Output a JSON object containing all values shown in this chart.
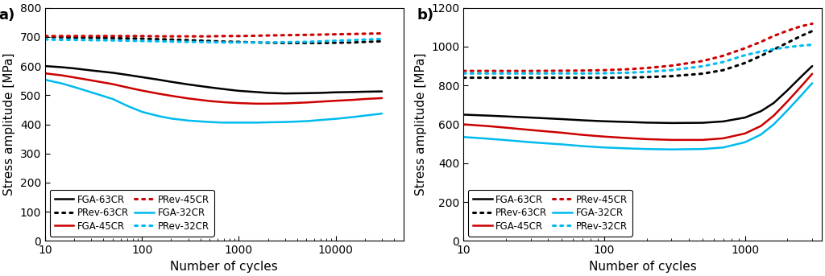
{
  "panel_a": {
    "xlabel": "Number of cycles",
    "ylabel": "Stress amplitude [MPa]",
    "ylim": [
      0,
      800
    ],
    "yticks": [
      0,
      100,
      200,
      300,
      400,
      500,
      600,
      700,
      800
    ],
    "xlim_log": [
      10,
      50000
    ],
    "label": "a)",
    "series": {
      "FGA-63CR": {
        "color": "#000000",
        "linestyle": "solid",
        "linewidth": 1.8,
        "x": [
          10,
          15,
          20,
          30,
          50,
          70,
          100,
          150,
          200,
          300,
          500,
          700,
          1000,
          1500,
          2000,
          3000,
          5000,
          7000,
          10000,
          15000,
          20000,
          30000
        ],
        "y": [
          600,
          596,
          592,
          585,
          577,
          570,
          562,
          553,
          546,
          537,
          527,
          521,
          515,
          511,
          508,
          506,
          507,
          508,
          510,
          511,
          512,
          513
        ]
      },
      "FGA-45CR": {
        "color": "#cc0000",
        "linestyle": "solid",
        "linewidth": 1.8,
        "x": [
          10,
          15,
          20,
          30,
          50,
          70,
          100,
          150,
          200,
          300,
          500,
          700,
          1000,
          1500,
          2000,
          3000,
          5000,
          7000,
          10000,
          15000,
          20000,
          30000
        ],
        "y": [
          575,
          568,
          561,
          551,
          538,
          527,
          516,
          505,
          498,
          489,
          480,
          476,
          473,
          471,
          471,
          472,
          475,
          478,
          481,
          484,
          487,
          490
        ]
      },
      "FGA-32CR": {
        "color": "#00bbee",
        "linestyle": "solid",
        "linewidth": 1.8,
        "x": [
          10,
          15,
          20,
          30,
          50,
          70,
          100,
          150,
          200,
          300,
          500,
          700,
          1000,
          1500,
          2000,
          3000,
          5000,
          7000,
          10000,
          15000,
          20000,
          30000
        ],
        "y": [
          553,
          540,
          528,
          510,
          487,
          464,
          443,
          428,
          420,
          413,
          408,
          406,
          406,
          406,
          407,
          408,
          411,
          415,
          419,
          425,
          430,
          437
        ]
      },
      "PRev-63CR": {
        "color": "#000000",
        "linestyle": "dotted",
        "linewidth": 2.2,
        "x": [
          10,
          15,
          20,
          30,
          50,
          70,
          100,
          150,
          200,
          300,
          500,
          700,
          1000,
          1500,
          2000,
          3000,
          5000,
          7000,
          10000,
          15000,
          20000,
          30000
        ],
        "y": [
          700,
          699,
          698,
          697,
          696,
          695,
          694,
          692,
          691,
          689,
          686,
          684,
          683,
          681,
          680,
          679,
          679,
          679,
          680,
          681,
          683,
          685
        ]
      },
      "PRev-45CR": {
        "color": "#cc0000",
        "linestyle": "dotted",
        "linewidth": 2.2,
        "x": [
          10,
          15,
          20,
          30,
          50,
          70,
          100,
          150,
          200,
          300,
          500,
          700,
          1000,
          1500,
          2000,
          3000,
          5000,
          7000,
          10000,
          15000,
          20000,
          30000
        ],
        "y": [
          703,
          703,
          703,
          703,
          703,
          703,
          703,
          702,
          702,
          702,
          702,
          703,
          703,
          704,
          705,
          706,
          707,
          708,
          709,
          710,
          711,
          712
        ]
      },
      "PRev-32CR": {
        "color": "#00bbee",
        "linestyle": "dotted",
        "linewidth": 2.2,
        "x": [
          10,
          15,
          20,
          30,
          50,
          70,
          100,
          150,
          200,
          300,
          500,
          700,
          1000,
          1500,
          2000,
          3000,
          5000,
          7000,
          10000,
          15000,
          20000,
          30000
        ],
        "y": [
          691,
          690,
          690,
          689,
          688,
          687,
          686,
          685,
          684,
          683,
          682,
          681,
          681,
          681,
          681,
          682,
          683,
          685,
          687,
          689,
          691,
          693
        ]
      }
    },
    "legend_entries": [
      {
        "label": "FGA-63CR",
        "color": "#000000",
        "linestyle": "solid"
      },
      {
        "label": "PRev-63CR",
        "color": "#000000",
        "linestyle": "dotted"
      },
      {
        "label": "FGA-45CR",
        "color": "#cc0000",
        "linestyle": "solid"
      },
      {
        "label": "PRev-45CR",
        "color": "#cc0000",
        "linestyle": "dotted"
      },
      {
        "label": "FGA-32CR",
        "color": "#00bbee",
        "linestyle": "solid"
      },
      {
        "label": "PRev-32CR",
        "color": "#00bbee",
        "linestyle": "dotted"
      }
    ]
  },
  "panel_b": {
    "xlabel": "Number of cycles",
    "ylabel": "Stress amplitude [MPa]",
    "ylim": [
      0,
      1200
    ],
    "yticks": [
      0,
      200,
      400,
      600,
      800,
      1000,
      1200
    ],
    "xlim_log": [
      10,
      3500
    ],
    "label": "b)",
    "series": {
      "FGA-63CR": {
        "color": "#000000",
        "linestyle": "solid",
        "linewidth": 1.8,
        "x": [
          10,
          15,
          20,
          30,
          50,
          70,
          100,
          150,
          200,
          300,
          500,
          700,
          1000,
          1300,
          1600,
          2000,
          2500,
          3000
        ],
        "y": [
          650,
          645,
          641,
          635,
          627,
          621,
          616,
          612,
          609,
          607,
          608,
          615,
          635,
          668,
          710,
          775,
          845,
          900
        ]
      },
      "FGA-45CR": {
        "color": "#cc0000",
        "linestyle": "solid",
        "linewidth": 1.8,
        "x": [
          10,
          15,
          20,
          30,
          50,
          70,
          100,
          150,
          200,
          300,
          500,
          700,
          1000,
          1300,
          1600,
          2000,
          2500,
          3000
        ],
        "y": [
          600,
          591,
          583,
          571,
          557,
          546,
          537,
          529,
          524,
          520,
          520,
          528,
          553,
          592,
          645,
          718,
          795,
          860
        ]
      },
      "FGA-32CR": {
        "color": "#00bbee",
        "linestyle": "solid",
        "linewidth": 1.8,
        "x": [
          10,
          15,
          20,
          30,
          50,
          70,
          100,
          150,
          200,
          300,
          500,
          700,
          1000,
          1300,
          1600,
          2000,
          2500,
          3000
        ],
        "y": [
          535,
          526,
          519,
          508,
          497,
          488,
          481,
          476,
          473,
          471,
          473,
          481,
          508,
          548,
          600,
          672,
          748,
          812
        ]
      },
      "PRev-63CR": {
        "color": "#000000",
        "linestyle": "dotted",
        "linewidth": 2.2,
        "x": [
          10,
          15,
          20,
          30,
          50,
          70,
          100,
          150,
          200,
          300,
          500,
          700,
          1000,
          1300,
          1600,
          2000,
          2500,
          3000
        ],
        "y": [
          840,
          840,
          840,
          840,
          840,
          840,
          840,
          841,
          843,
          848,
          861,
          879,
          916,
          953,
          985,
          1020,
          1055,
          1080
        ]
      },
      "PRev-45CR": {
        "color": "#cc0000",
        "linestyle": "dotted",
        "linewidth": 2.2,
        "x": [
          10,
          15,
          20,
          30,
          50,
          70,
          100,
          150,
          200,
          300,
          500,
          700,
          1000,
          1300,
          1600,
          2000,
          2500,
          3000
        ],
        "y": [
          875,
          875,
          875,
          875,
          876,
          877,
          879,
          884,
          890,
          902,
          926,
          953,
          992,
          1025,
          1055,
          1082,
          1105,
          1118
        ]
      },
      "PRev-32CR": {
        "color": "#00bbee",
        "linestyle": "dotted",
        "linewidth": 2.2,
        "x": [
          10,
          15,
          20,
          30,
          50,
          70,
          100,
          150,
          200,
          300,
          500,
          700,
          1000,
          1300,
          1600,
          2000,
          2500,
          3000
        ],
        "y": [
          862,
          862,
          862,
          862,
          862,
          862,
          863,
          866,
          870,
          879,
          899,
          921,
          956,
          975,
          987,
          997,
          1005,
          1010
        ]
      }
    },
    "legend_entries": [
      {
        "label": "FGA-63CR",
        "color": "#000000",
        "linestyle": "solid"
      },
      {
        "label": "PRev-63CR",
        "color": "#000000",
        "linestyle": "dotted"
      },
      {
        "label": "FGA-45CR",
        "color": "#cc0000",
        "linestyle": "solid"
      },
      {
        "label": "PRev-45CR",
        "color": "#cc0000",
        "linestyle": "dotted"
      },
      {
        "label": "FGA-32CR",
        "color": "#00bbee",
        "linestyle": "solid"
      },
      {
        "label": "PRev-32CR",
        "color": "#00bbee",
        "linestyle": "dotted"
      }
    ]
  },
  "background_color": "#ffffff",
  "axes_color": "#000000",
  "tick_label_fontsize": 10,
  "axis_label_fontsize": 11,
  "legend_fontsize": 8.5,
  "panel_label_fontsize": 13
}
